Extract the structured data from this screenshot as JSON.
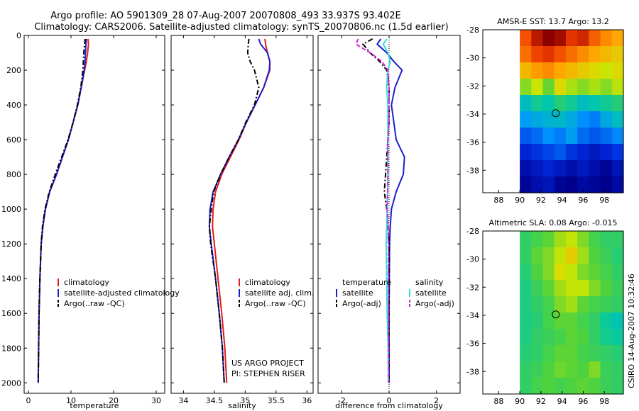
{
  "title": {
    "line1": "Argo profile: AO 5901309_28 07-Aug-2007 20070808_493 33.937S 93.402E",
    "line2": "Climatology: CARS2006. Satellite-adjusted climatology: synTS_20070806.nc (1.5d earlier)"
  },
  "footer": {
    "project": "US ARGO PROJECT",
    "pi": "PI: STEPHEN RISER",
    "stamp": "CSIRO 14-Aug-2007 10:32:46"
  },
  "colors": {
    "climatology": "#e41a1c",
    "satellite": "#1f1fcc",
    "argo": "#000000",
    "salinity_satellite": "#33dddd",
    "salinity_argo": "#dd22dd"
  },
  "chart_data": [
    {
      "id": "temperature-profile",
      "type": "line",
      "xlabel": "temperature",
      "xlim": [
        -1,
        32
      ],
      "xticks": [
        0,
        10,
        20,
        30
      ],
      "ylim": [
        0,
        2060
      ],
      "yticks": [
        0,
        200,
        400,
        600,
        800,
        1000,
        1200,
        1400,
        1600,
        1800,
        2000
      ],
      "y_reversed": true,
      "legend": {
        "placement": "lower-center",
        "entries": [
          "climatology",
          "satellite-adjusted climatology",
          "Argo(..raw -QC)"
        ]
      },
      "series": [
        {
          "name": "climatology",
          "color_key": "climatology",
          "dash": "solid",
          "x": [
            14.0,
            14.1,
            13.9,
            13.6,
            13.2,
            12.4,
            11.6,
            10.5,
            9.4,
            8.0,
            6.6,
            5.0,
            4.0,
            3.4,
            3.0,
            2.7,
            2.5,
            2.4,
            2.3
          ],
          "y": [
            20,
            50,
            100,
            150,
            200,
            300,
            400,
            500,
            600,
            700,
            800,
            900,
            1000,
            1100,
            1200,
            1400,
            1600,
            1800,
            2000
          ]
        },
        {
          "name": "satellite-adjusted climatology",
          "color_key": "satellite",
          "dash": "solid",
          "x": [
            13.6,
            13.5,
            13.4,
            13.3,
            13.1,
            12.4,
            11.6,
            10.5,
            9.4,
            8.0,
            6.6,
            5.0,
            4.0,
            3.4,
            3.0,
            2.7,
            2.5,
            2.4,
            2.3
          ],
          "y": [
            20,
            50,
            100,
            150,
            200,
            300,
            400,
            500,
            600,
            700,
            800,
            900,
            1000,
            1100,
            1200,
            1400,
            1600,
            1800,
            2000
          ]
        },
        {
          "name": "Argo(..raw -QC)",
          "color_key": "argo",
          "dash": "dashdot",
          "x": [
            13.3,
            13.2,
            13.0,
            12.9,
            12.8,
            12.3,
            11.5,
            10.5,
            9.3,
            7.8,
            6.3,
            4.9,
            3.9,
            3.3,
            3.0,
            2.7,
            2.5,
            2.4,
            2.3
          ],
          "y": [
            20,
            50,
            100,
            150,
            200,
            300,
            400,
            500,
            600,
            700,
            800,
            900,
            1000,
            1100,
            1200,
            1400,
            1600,
            1800,
            2000
          ]
        }
      ]
    },
    {
      "id": "salinity-profile",
      "type": "line",
      "xlabel": "salinity",
      "xlim": [
        33.8,
        36.1
      ],
      "xticks": [
        34,
        34.5,
        35,
        35.5,
        36
      ],
      "ylim": [
        0,
        2060
      ],
      "y_reversed": true,
      "legend": {
        "placement": "lower-center",
        "entries": [
          "climatology",
          "satellite adj. clim.",
          "Argo(..raw -QC)"
        ]
      },
      "series": [
        {
          "name": "climatology",
          "color_key": "climatology",
          "dash": "solid",
          "x": [
            35.32,
            35.33,
            35.36,
            35.4,
            35.4,
            35.3,
            35.16,
            35.02,
            34.9,
            34.76,
            34.62,
            34.52,
            34.48,
            34.47,
            34.5,
            34.56,
            34.62,
            34.67,
            34.7
          ],
          "y": [
            20,
            50,
            100,
            150,
            200,
            300,
            400,
            500,
            600,
            700,
            800,
            900,
            1000,
            1100,
            1200,
            1400,
            1600,
            1800,
            2000
          ]
        },
        {
          "name": "satellite adj. clim.",
          "color_key": "satellite",
          "dash": "solid",
          "x": [
            35.22,
            35.25,
            35.36,
            35.4,
            35.39,
            35.3,
            35.16,
            35.02,
            34.89,
            34.74,
            34.6,
            34.48,
            34.43,
            34.42,
            34.45,
            34.52,
            34.58,
            34.63,
            34.66
          ],
          "y": [
            20,
            50,
            100,
            150,
            200,
            300,
            400,
            500,
            600,
            700,
            800,
            900,
            1000,
            1100,
            1200,
            1400,
            1600,
            1800,
            2000
          ]
        },
        {
          "name": "Argo(..raw -QC)",
          "color_key": "argo",
          "dash": "dashdot",
          "x": [
            35.06,
            35.05,
            35.04,
            35.08,
            35.15,
            35.22,
            35.15,
            35.01,
            34.89,
            34.74,
            34.6,
            34.49,
            34.45,
            34.42,
            34.44,
            34.52,
            34.58,
            34.63,
            34.66
          ],
          "y": [
            20,
            50,
            100,
            150,
            200,
            300,
            400,
            500,
            600,
            700,
            800,
            900,
            1000,
            1100,
            1200,
            1400,
            1600,
            1800,
            2000
          ]
        }
      ]
    },
    {
      "id": "difference-profile",
      "type": "line",
      "xlabel": "difference from climatology",
      "xlim": [
        -3,
        3
      ],
      "xticks": [
        -2,
        0,
        2
      ],
      "ylim": [
        0,
        2060
      ],
      "y_reversed": true,
      "zero_line": true,
      "legend": {
        "placement": "lower-center",
        "columns": [
          {
            "header": "temperature",
            "entries": [
              "satellite",
              "Argo(-adj)"
            ]
          },
          {
            "header": "salinity",
            "entries": [
              "satellite",
              "Argo(-adj)"
            ]
          }
        ]
      },
      "series": [
        {
          "name": "temperature satellite",
          "color_key": "satellite",
          "dash": "solid",
          "x": [
            -0.35,
            -0.5,
            -0.1,
            0.2,
            0.55,
            0.25,
            0.1,
            0.2,
            0.3,
            0.65,
            0.6,
            0.3,
            0.1,
            0.05,
            0.02,
            0.01,
            0.0,
            0.0,
            0.0
          ],
          "y": [
            20,
            50,
            100,
            150,
            200,
            300,
            400,
            500,
            600,
            700,
            800,
            900,
            1000,
            1100,
            1200,
            1400,
            1600,
            1800,
            2000
          ]
        },
        {
          "name": "temperature Argo(-adj)",
          "color_key": "argo",
          "dash": "dashdot",
          "x": [
            -0.7,
            -1.1,
            -0.8,
            -0.4,
            -0.1,
            0.0,
            0.0,
            0.0,
            -0.05,
            -0.1,
            -0.15,
            -0.2,
            -0.1,
            -0.05,
            0.0,
            0.0,
            0.0,
            0.0,
            0.0
          ],
          "y": [
            20,
            50,
            100,
            150,
            200,
            300,
            400,
            500,
            600,
            700,
            800,
            900,
            1000,
            1100,
            1200,
            1400,
            1600,
            1800,
            2000
          ]
        },
        {
          "name": "salinity satellite",
          "color_key": "salinity_satellite",
          "dash": "solid",
          "x": [
            -0.1,
            -0.25,
            -0.05,
            0.05,
            -0.05,
            -0.1,
            -0.05,
            -0.05,
            -0.05,
            -0.05,
            -0.05,
            -0.06,
            -0.08,
            -0.1,
            -0.12,
            -0.1,
            -0.08,
            -0.04,
            -0.03
          ],
          "y": [
            20,
            50,
            100,
            150,
            200,
            300,
            400,
            500,
            600,
            700,
            800,
            900,
            1000,
            1100,
            1200,
            1400,
            1600,
            1800,
            2000
          ]
        },
        {
          "name": "salinity Argo(-adj)",
          "color_key": "salinity_argo",
          "dash": "dash",
          "x": [
            -1.3,
            -1.4,
            -0.8,
            -0.3,
            -0.05,
            0.0,
            0.0,
            0.0,
            -0.05,
            -0.05,
            -0.05,
            -0.06,
            -0.08,
            -0.04,
            -0.03,
            -0.03,
            -0.02,
            -0.02,
            -0.02
          ],
          "y": [
            20,
            50,
            100,
            150,
            200,
            300,
            400,
            500,
            600,
            700,
            800,
            900,
            1000,
            1100,
            1200,
            1400,
            1600,
            1800,
            2000
          ]
        }
      ]
    },
    {
      "id": "sst-map",
      "type": "heatmap",
      "title": "AMSR-E SST: 13.7 Argo: 13.2",
      "xlim": [
        86.5,
        99.8
      ],
      "ylim": [
        -39.6,
        -28
      ],
      "xticks": [
        88,
        90,
        92,
        94,
        96,
        98
      ],
      "yticks": [
        -28,
        -30,
        -32,
        -34,
        -36,
        -38
      ],
      "data_xmin": 90,
      "marker": {
        "lon": 93.402,
        "lat": -33.937
      },
      "rows_note_top_to_bottom": "values in deg C",
      "z": [
        [
          16.4,
          16.8,
          17.0,
          16.9,
          16.6,
          16.7,
          16.3,
          16.0,
          15.8
        ],
        [
          16.2,
          16.5,
          16.6,
          16.4,
          16.2,
          16.0,
          15.8,
          15.6,
          15.4
        ],
        [
          15.6,
          15.9,
          16.0,
          15.8,
          15.6,
          15.4,
          15.2,
          15.0,
          15.2
        ],
        [
          14.6,
          15.0,
          14.4,
          15.2,
          14.8,
          14.6,
          14.8,
          14.6,
          14.9
        ],
        [
          13.2,
          13.6,
          13.4,
          13.8,
          13.6,
          13.2,
          13.4,
          13.6,
          13.8
        ],
        [
          12.6,
          12.8,
          13.0,
          13.1,
          12.8,
          12.4,
          12.2,
          12.8,
          13.2
        ],
        [
          11.8,
          12.0,
          12.4,
          12.2,
          12.6,
          12.0,
          11.8,
          12.0,
          12.3
        ],
        [
          11.2,
          11.4,
          11.6,
          11.8,
          11.4,
          11.2,
          11.0,
          11.2,
          11.4
        ],
        [
          10.8,
          11.0,
          11.2,
          11.0,
          10.8,
          11.0,
          10.8,
          10.6,
          10.9
        ],
        [
          10.6,
          10.8,
          10.9,
          10.6,
          10.5,
          10.7,
          10.6,
          10.5,
          10.7
        ]
      ],
      "zlim": [
        10.5,
        17.0
      ]
    },
    {
      "id": "sla-map",
      "type": "heatmap",
      "title": "Altimetric SLA: 0.08 Argo: -0.015",
      "xlim": [
        86.5,
        99.8
      ],
      "ylim": [
        -39.6,
        -28
      ],
      "xticks": [
        88,
        90,
        92,
        94,
        96,
        98
      ],
      "yticks": [
        -28,
        -30,
        -32,
        -34,
        -36,
        -38
      ],
      "data_xmin": 90,
      "marker": {
        "lon": 93.402,
        "lat": -33.937
      },
      "z": [
        [
          0.02,
          0.04,
          0.06,
          0.1,
          0.12,
          0.08,
          0.04,
          0.02,
          0.02
        ],
        [
          0.02,
          0.06,
          0.08,
          0.12,
          0.16,
          0.1,
          0.05,
          0.03,
          0.01
        ],
        [
          0.01,
          0.05,
          0.08,
          0.14,
          0.12,
          0.08,
          0.06,
          0.04,
          0.02
        ],
        [
          0.0,
          0.03,
          0.06,
          0.1,
          0.12,
          0.12,
          0.08,
          0.05,
          0.03
        ],
        [
          0.0,
          0.02,
          0.04,
          0.08,
          0.1,
          0.06,
          0.04,
          0.03,
          0.02
        ],
        [
          0.0,
          0.01,
          0.04,
          0.06,
          0.06,
          0.04,
          0.02,
          -0.02,
          -0.04
        ],
        [
          0.0,
          0.02,
          0.03,
          0.04,
          0.06,
          0.05,
          0.02,
          -0.01,
          -0.02
        ],
        [
          0.01,
          0.02,
          0.04,
          0.06,
          0.06,
          0.04,
          0.03,
          0.02,
          0.01
        ],
        [
          0.02,
          0.03,
          0.05,
          0.07,
          0.06,
          0.05,
          0.08,
          0.03,
          0.02
        ],
        [
          0.02,
          0.04,
          0.05,
          0.04,
          0.05,
          0.06,
          0.05,
          0.03,
          0.02
        ]
      ],
      "zlim": [
        -0.05,
        0.18
      ]
    }
  ]
}
